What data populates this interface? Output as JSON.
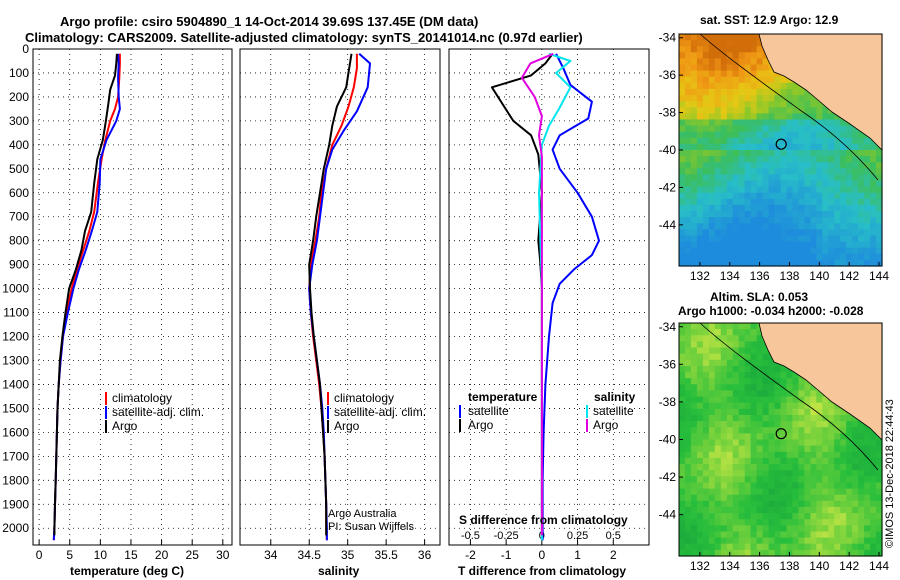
{
  "header": {
    "title_line1": "Argo profile: csiro 5904890_1 14-Oct-2014 39.69S 137.45E (DM data)",
    "title_line2": "Climatology: CARS2009. Satellite-adjusted climatology: synTS_20141014.nc (0.97d earlier)"
  },
  "colors": {
    "climatology": "#ff0000",
    "satellite": "#0000ff",
    "argo": "#000000",
    "s_satellite": "#00e5ee",
    "s_argo": "#e000e0"
  },
  "depth_axis": {
    "ticks": [
      0,
      100,
      200,
      300,
      400,
      500,
      600,
      700,
      800,
      900,
      1000,
      1100,
      1200,
      1300,
      1400,
      1500,
      1600,
      1700,
      1800,
      1900,
      2000
    ],
    "ylim": [
      0,
      2070
    ]
  },
  "chart_data": [
    {
      "type": "line",
      "id": "temperature",
      "xlabel": "temperature (deg C)",
      "xlim": [
        -1,
        31.5
      ],
      "xticks": [
        0,
        5,
        10,
        15,
        20,
        25,
        30
      ],
      "xtick_labels": [
        "0",
        "5",
        "10",
        "15",
        "20",
        "25",
        "30"
      ],
      "legend": [
        "climatology",
        "satellite-adj. clim.",
        "Argo"
      ],
      "series": [
        {
          "name": "climatology",
          "color": "#ff0000",
          "points": [
            [
              13.2,
              20
            ],
            [
              13.2,
              60
            ],
            [
              13.1,
              120
            ],
            [
              12.9,
              200
            ],
            [
              12.4,
              250
            ],
            [
              11.6,
              300
            ],
            [
              10.8,
              380
            ],
            [
              10.2,
              460
            ],
            [
              9.6,
              560
            ],
            [
              9.0,
              680
            ],
            [
              8.2,
              760
            ],
            [
              7.2,
              840
            ],
            [
              6.2,
              920
            ],
            [
              5.3,
              1000
            ],
            [
              4.5,
              1100
            ],
            [
              3.9,
              1200
            ],
            [
              3.5,
              1300
            ],
            [
              3.2,
              1400
            ],
            [
              3.0,
              1500
            ],
            [
              2.9,
              1600
            ],
            [
              2.8,
              1700
            ],
            [
              2.7,
              1800
            ],
            [
              2.6,
              1900
            ],
            [
              2.5,
              2000
            ],
            [
              2.4,
              2050
            ]
          ]
        },
        {
          "name": "satellite-adj. clim.",
          "color": "#0000ff",
          "points": [
            [
              12.9,
              20
            ],
            [
              13.0,
              60
            ],
            [
              12.9,
              120
            ],
            [
              13.0,
              200
            ],
            [
              13.2,
              250
            ],
            [
              12.6,
              300
            ],
            [
              11.0,
              380
            ],
            [
              10.0,
              460
            ],
            [
              9.9,
              560
            ],
            [
              9.5,
              680
            ],
            [
              8.6,
              760
            ],
            [
              7.6,
              840
            ],
            [
              6.5,
              920
            ],
            [
              5.6,
              1000
            ],
            [
              4.7,
              1100
            ],
            [
              3.9,
              1200
            ],
            [
              3.5,
              1300
            ],
            [
              3.2,
              1400
            ],
            [
              3.0,
              1500
            ],
            [
              2.9,
              1600
            ],
            [
              2.8,
              1700
            ],
            [
              2.7,
              1800
            ],
            [
              2.6,
              1900
            ],
            [
              2.5,
              2000
            ],
            [
              2.4,
              2050
            ]
          ]
        },
        {
          "name": "Argo",
          "color": "#000000",
          "points": [
            [
              12.7,
              20
            ],
            [
              12.6,
              60
            ],
            [
              12.4,
              110
            ],
            [
              11.6,
              170
            ],
            [
              11.3,
              230
            ],
            [
              10.9,
              300
            ],
            [
              10.4,
              380
            ],
            [
              9.5,
              460
            ],
            [
              9.0,
              560
            ],
            [
              8.5,
              680
            ],
            [
              7.5,
              760
            ],
            [
              6.9,
              840
            ],
            [
              6.0,
              920
            ],
            [
              4.9,
              1000
            ],
            [
              4.3,
              1100
            ],
            [
              3.8,
              1200
            ],
            [
              3.4,
              1300
            ],
            [
              3.2,
              1400
            ],
            [
              3.0,
              1500
            ],
            [
              2.9,
              1600
            ],
            [
              2.8,
              1700
            ],
            [
              2.7,
              1800
            ],
            [
              2.6,
              1900
            ],
            [
              2.5,
              2000
            ],
            [
              2.5,
              2030
            ]
          ]
        }
      ]
    },
    {
      "type": "line",
      "id": "salinity",
      "xlabel": "salinity",
      "xlim": [
        33.6,
        36.2
      ],
      "xticks": [
        34,
        34.5,
        35,
        35.5,
        36
      ],
      "xtick_labels": [
        "34",
        "34.5",
        "35",
        "35.5",
        "36"
      ],
      "legend": [
        "climatology",
        "satellite-adj. clim.",
        "Argo"
      ],
      "note": [
        "Argo Australia",
        "PI: Susan Wijffels"
      ],
      "series": [
        {
          "name": "climatology",
          "color": "#ff0000",
          "points": [
            [
              35.12,
              20
            ],
            [
              35.12,
              80
            ],
            [
              35.08,
              160
            ],
            [
              35.01,
              240
            ],
            [
              34.92,
              320
            ],
            [
              34.8,
              400
            ],
            [
              34.72,
              500
            ],
            [
              34.66,
              600
            ],
            [
              34.63,
              700
            ],
            [
              34.58,
              800
            ],
            [
              34.52,
              900
            ],
            [
              34.5,
              1000
            ],
            [
              34.52,
              1100
            ],
            [
              34.55,
              1200
            ],
            [
              34.59,
              1300
            ],
            [
              34.63,
              1400
            ],
            [
              34.66,
              1500
            ],
            [
              34.68,
              1600
            ],
            [
              34.7,
              1700
            ],
            [
              34.71,
              1800
            ],
            [
              34.72,
              1900
            ],
            [
              34.72,
              2000
            ],
            [
              34.73,
              2050
            ]
          ]
        },
        {
          "name": "satellite-adj. clim.",
          "color": "#0000ff",
          "points": [
            [
              35.15,
              20
            ],
            [
              35.29,
              60
            ],
            [
              35.26,
              160
            ],
            [
              35.12,
              260
            ],
            [
              34.95,
              340
            ],
            [
              34.8,
              420
            ],
            [
              34.72,
              500
            ],
            [
              34.68,
              600
            ],
            [
              34.64,
              700
            ],
            [
              34.6,
              800
            ],
            [
              34.54,
              900
            ],
            [
              34.5,
              1000
            ],
            [
              34.52,
              1100
            ],
            [
              34.56,
              1200
            ],
            [
              34.6,
              1300
            ],
            [
              34.64,
              1400
            ],
            [
              34.67,
              1500
            ],
            [
              34.69,
              1600
            ],
            [
              34.7,
              1700
            ],
            [
              34.71,
              1800
            ],
            [
              34.72,
              1900
            ],
            [
              34.73,
              2000
            ],
            [
              34.73,
              2050
            ]
          ]
        },
        {
          "name": "Argo",
          "color": "#000000",
          "points": [
            [
              35.05,
              20
            ],
            [
              35.02,
              80
            ],
            [
              34.98,
              160
            ],
            [
              34.86,
              240
            ],
            [
              34.8,
              320
            ],
            [
              34.76,
              400
            ],
            [
              34.69,
              500
            ],
            [
              34.64,
              600
            ],
            [
              34.59,
              700
            ],
            [
              34.55,
              800
            ],
            [
              34.5,
              900
            ],
            [
              34.51,
              1000
            ],
            [
              34.53,
              1100
            ],
            [
              34.56,
              1200
            ],
            [
              34.6,
              1300
            ],
            [
              34.64,
              1400
            ],
            [
              34.66,
              1500
            ],
            [
              34.68,
              1600
            ],
            [
              34.7,
              1700
            ],
            [
              34.71,
              1800
            ],
            [
              34.72,
              1900
            ],
            [
              34.72,
              2000
            ],
            [
              34.72,
              2030
            ]
          ]
        }
      ]
    },
    {
      "type": "line",
      "id": "difference",
      "xlabel": "T difference from climatology",
      "xlim": [
        -2.6,
        3
      ],
      "xticks": [
        -2,
        -1,
        0,
        1,
        2
      ],
      "xtick_labels": [
        "-2",
        "-1",
        "0",
        "1",
        "2"
      ],
      "secondary_xlabel": "S difference from climatology",
      "secondary_xticks": [
        -0.5,
        -0.25,
        0,
        0.25,
        0.5
      ],
      "secondary_xtick_labels": [
        "-0.5",
        "-0.25",
        "0",
        "0.25",
        "0.5"
      ],
      "legend_left_title": "temperature",
      "legend_right_title": "salinity",
      "legend_left": [
        "satellite",
        "Argo"
      ],
      "legend_right": [
        "satellite",
        "Argo"
      ],
      "series": [
        {
          "name": "temperature satellite",
          "color": "#0000ff",
          "points": [
            [
              0.4,
              20
            ],
            [
              0.6,
              80
            ],
            [
              0.8,
              150
            ],
            [
              1.4,
              220
            ],
            [
              1.3,
              290
            ],
            [
              0.5,
              360
            ],
            [
              0.3,
              420
            ],
            [
              0.5,
              500
            ],
            [
              1.0,
              600
            ],
            [
              1.4,
              700
            ],
            [
              1.6,
              800
            ],
            [
              1.4,
              860
            ],
            [
              0.9,
              920
            ],
            [
              0.5,
              980
            ],
            [
              0.3,
              1060
            ],
            [
              0.2,
              1200
            ],
            [
              0.1,
              1400
            ],
            [
              0.05,
              1600
            ],
            [
              0.02,
              1800
            ],
            [
              0.02,
              2000
            ],
            [
              0.02,
              2050
            ]
          ]
        },
        {
          "name": "temperature Argo",
          "color": "#000000",
          "points": [
            [
              0.3,
              20
            ],
            [
              0.1,
              60
            ],
            [
              -0.3,
              110
            ],
            [
              -1.4,
              160
            ],
            [
              -1.1,
              230
            ],
            [
              -0.8,
              300
            ],
            [
              -0.3,
              360
            ],
            [
              -0.1,
              440
            ],
            [
              0.0,
              600
            ],
            [
              -0.1,
              800
            ],
            [
              -0.05,
              880
            ],
            [
              0.0,
              1000
            ],
            [
              0.0,
              1200
            ],
            [
              0.0,
              1500
            ],
            [
              0.0,
              1800
            ],
            [
              0.0,
              2030
            ]
          ]
        },
        {
          "name": "salinity satellite",
          "color": "#00e5ee",
          "points": [
            [
              0.05,
              20
            ],
            [
              0.2,
              50
            ],
            [
              0.1,
              100
            ],
            [
              0.2,
              160
            ],
            [
              0.12,
              250
            ],
            [
              0.05,
              320
            ],
            [
              0.0,
              400
            ],
            [
              -0.02,
              600
            ],
            [
              -0.01,
              800
            ],
            [
              0.0,
              1000
            ],
            [
              0.0,
              1200
            ],
            [
              0.0,
              1500
            ],
            [
              0.0,
              1800
            ],
            [
              0.0,
              2050
            ]
          ]
        },
        {
          "name": "salinity Argo",
          "color": "#e000e0",
          "points": [
            [
              0.08,
              20
            ],
            [
              -0.08,
              60
            ],
            [
              -0.14,
              120
            ],
            [
              -0.05,
              200
            ],
            [
              0.0,
              280
            ],
            [
              -0.02,
              360
            ],
            [
              0.0,
              450
            ],
            [
              0.0,
              600
            ],
            [
              0.0,
              800
            ],
            [
              0.0,
              1000
            ],
            [
              0.0,
              1200
            ],
            [
              0.0,
              1500
            ],
            [
              0.0,
              1800
            ],
            [
              0.0,
              2030
            ]
          ]
        }
      ]
    }
  ],
  "maps": [
    {
      "id": "sst",
      "title": "sat. SST: 12.9 Argo: 12.9",
      "xticks": [
        132,
        134,
        136,
        138,
        140,
        142,
        144
      ],
      "yticks": [
        -34,
        -36,
        -38,
        -40,
        -42,
        -44
      ],
      "xlim": [
        130.6,
        144.2
      ],
      "ylim": [
        -46.2,
        -33.8
      ],
      "marker": [
        137.45,
        -39.69
      ]
    },
    {
      "id": "sla",
      "title_line1": "Altim. SLA: 0.053",
      "title_line2": "Argo h1000: -0.034 h2000: -0.028",
      "xticks": [
        132,
        134,
        136,
        138,
        140,
        142,
        144
      ],
      "yticks": [
        -34,
        -36,
        -38,
        -40,
        -42,
        -44
      ],
      "xlim": [
        130.6,
        144.2
      ],
      "ylim": [
        -46.2,
        -33.8
      ],
      "marker": [
        137.45,
        -39.69
      ]
    }
  ],
  "credit": "©IMOS 13-Dec-2018 22:44:43"
}
